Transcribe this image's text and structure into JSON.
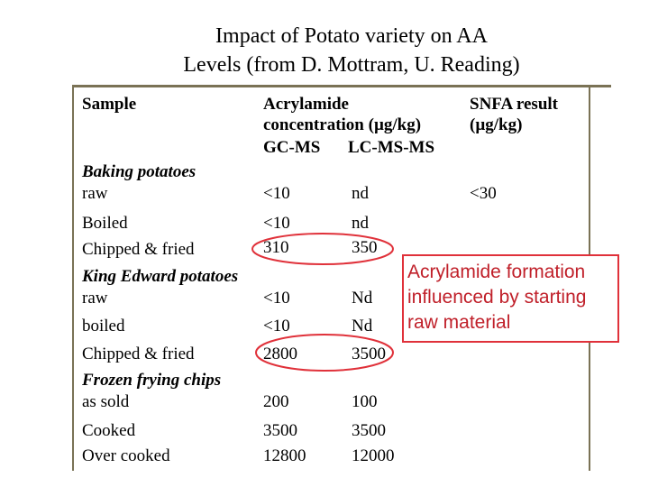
{
  "title": {
    "line1": "Impact of Potato variety on AA",
    "line2": "Levels  (from D. Mottram, U. Reading)"
  },
  "table": {
    "headers": {
      "sample": "Sample",
      "acrylamide_line1": "Acrylamide",
      "acrylamide_line2": "concentration (µg/kg)",
      "gcms": "GC-MS",
      "lcmsms": "LC-MS-MS",
      "snfa_line1": "SNFA result",
      "snfa_line2": "(µg/kg)"
    },
    "groups": {
      "baking": "Baking potatoes",
      "king_edward": "King Edward potatoes",
      "frozen": "Frozen frying chips"
    },
    "rows": [
      {
        "sample": "raw",
        "gcms": "<10",
        "lcmsms": "nd",
        "snfa": "<30"
      },
      {
        "sample": "Boiled",
        "gcms": "<10",
        "lcmsms": "nd",
        "snfa": ""
      },
      {
        "sample": "Chipped & fried",
        "gcms": "310",
        "lcmsms": "350",
        "snfa": ""
      },
      {
        "sample": "raw",
        "gcms": "<10",
        "lcmsms": "Nd",
        "snfa": ""
      },
      {
        "sample": "boiled",
        "gcms": "<10",
        "lcmsms": "Nd",
        "snfa": ""
      },
      {
        "sample": "Chipped & fried",
        "gcms": "2800",
        "lcmsms": "3500",
        "snfa": ""
      },
      {
        "sample": "as sold",
        "gcms": "200",
        "lcmsms": "100",
        "snfa": ""
      },
      {
        "sample": "Cooked",
        "gcms": "3500",
        "lcmsms": "3500",
        "snfa": ""
      },
      {
        "sample": "Over cooked",
        "gcms": "12800",
        "lcmsms": "12000",
        "snfa": ""
      }
    ]
  },
  "callout": {
    "line1": "Acrylamide formation",
    "line2": "influenced by  starting",
    "line3": "raw material"
  },
  "colors": {
    "rule": "#7a7255",
    "highlight": "#e0313a"
  }
}
